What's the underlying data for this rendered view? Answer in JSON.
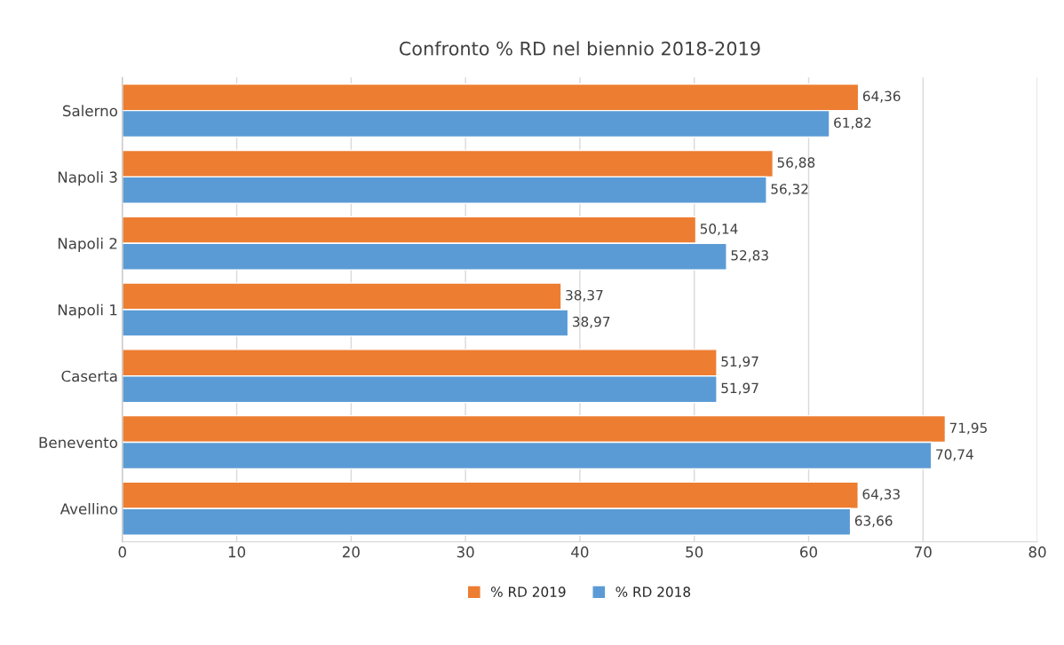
{
  "chart_data": {
    "type": "bar",
    "orientation": "horizontal",
    "title": "Confronto % RD nel biennio 2018-2019",
    "categories": [
      "Salerno",
      "Napoli 3",
      "Napoli 2",
      "Napoli 1",
      "Caserta",
      "Benevento",
      "Avellino"
    ],
    "series": [
      {
        "name": "% RD 2019",
        "color": "#ed7d31",
        "values": [
          64.36,
          56.88,
          50.14,
          38.37,
          51.97,
          71.95,
          64.33
        ],
        "value_labels": [
          "64,36",
          "56,88",
          "50,14",
          "38,37",
          "51,97",
          "71,95",
          "64,33"
        ]
      },
      {
        "name": "% RD 2018",
        "color": "#5b9bd5",
        "values": [
          61.82,
          56.32,
          52.83,
          38.97,
          51.97,
          70.74,
          63.66
        ],
        "value_labels": [
          "61,82",
          "56,32",
          "52,83",
          "38,97",
          "51,97",
          "70,74",
          "63,66"
        ]
      }
    ],
    "xlim": [
      0,
      80
    ],
    "xticks": [
      0,
      10,
      20,
      30,
      40,
      50,
      60,
      70,
      80
    ],
    "grid": "x",
    "legend": "bottom"
  }
}
